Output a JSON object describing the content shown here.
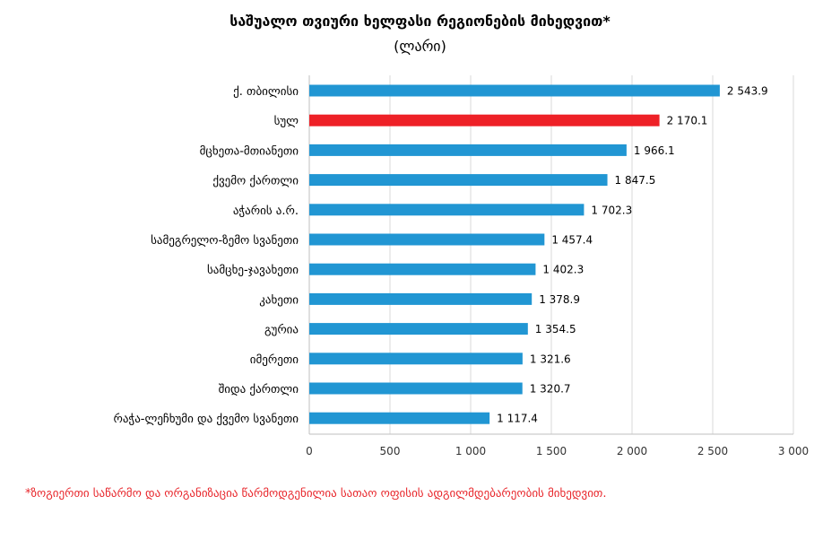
{
  "chart_data": {
    "type": "bar",
    "orientation": "horizontal",
    "title": "საშუალო თვიური ხელფასი რეგიონების მიხედვით*",
    "subtitle": "(ლარი)",
    "categories": [
      "ქ. თბილისი",
      "სულ",
      "მცხეთა-მთიანეთი",
      "ქვემო ქართლი",
      "აჭარის ა.რ.",
      "სამეგრელო-ზემო სვანეთი",
      "სამცხე-ჯავახეთი",
      "კახეთი",
      "გურია",
      "იმერეთი",
      "შიდა ქართლი",
      "რაჭა-ლეჩხუმი და ქვემო სვანეთი"
    ],
    "values": [
      2543.9,
      2170.1,
      1966.1,
      1847.5,
      1702.3,
      1457.4,
      1402.3,
      1378.9,
      1354.5,
      1321.6,
      1320.7,
      1117.4
    ],
    "value_labels": [
      "2 543.9",
      "2 170.1",
      "1 966.1",
      "1 847.5",
      "1 702.3",
      "1 457.4",
      "1 402.3",
      "1 378.9",
      "1 354.5",
      "1 321.6",
      "1 320.7",
      "1 117.4"
    ],
    "highlight_index": 1,
    "colors": {
      "bar": "#2196d3",
      "highlight": "#ee2127",
      "grid": "#d9d9d9"
    },
    "xlim": [
      0,
      3000
    ],
    "xticks": [
      0,
      500,
      1000,
      1500,
      2000,
      2500,
      3000
    ],
    "xtick_labels": [
      "0",
      "500",
      "1 000",
      "1 500",
      "2 000",
      "2 500",
      "3 000"
    ],
    "grid": true,
    "xlabel": "",
    "ylabel": ""
  },
  "footnote": "*ზოგიერთი საწარმო და ორგანიზაცია წარმოდგენილია სათაო ოფისის ადგილმდებარეობის მიხედვით."
}
